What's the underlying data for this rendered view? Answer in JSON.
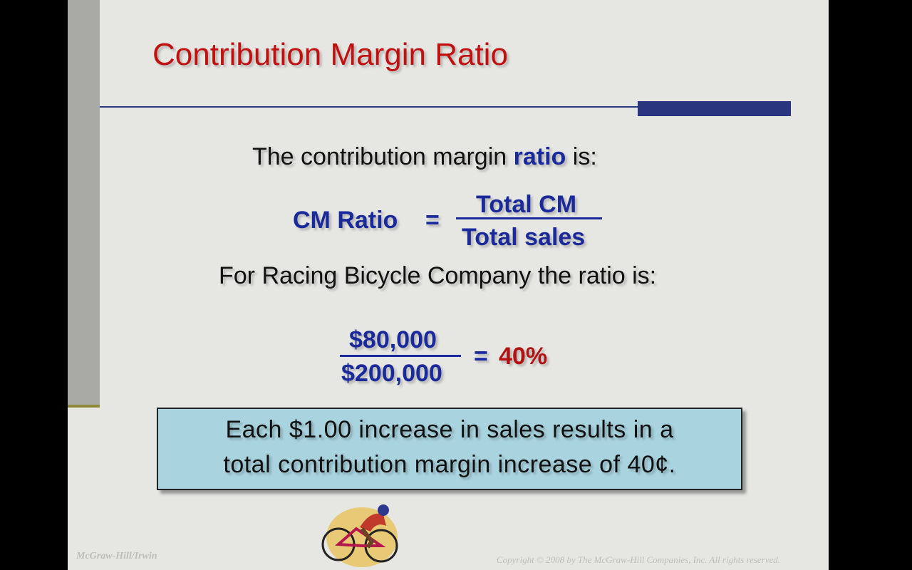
{
  "slide": {
    "title": "Contribution Margin Ratio",
    "intro": {
      "before": "The contribution margin",
      "highlight": "ratio",
      "after": "is:"
    },
    "formula": {
      "lhs": "CM Ratio",
      "equals": "=",
      "numerator": "Total CM",
      "denominator": "Total sales"
    },
    "example_intro": "For Racing Bicycle Company the ratio is:",
    "example": {
      "numerator": "$80,000",
      "denominator": "$200,000",
      "equals": "=",
      "result": "40%"
    },
    "callout": {
      "lines": [
        "Each $1.00 increase in sales results in a",
        "total contribution margin increase of 40¢."
      ]
    },
    "footer": {
      "left": "McGraw-Hill/Irwin",
      "right": "Copyright © 2008 by The McGraw-Hill Companies, Inc. All rights reserved."
    }
  }
}
